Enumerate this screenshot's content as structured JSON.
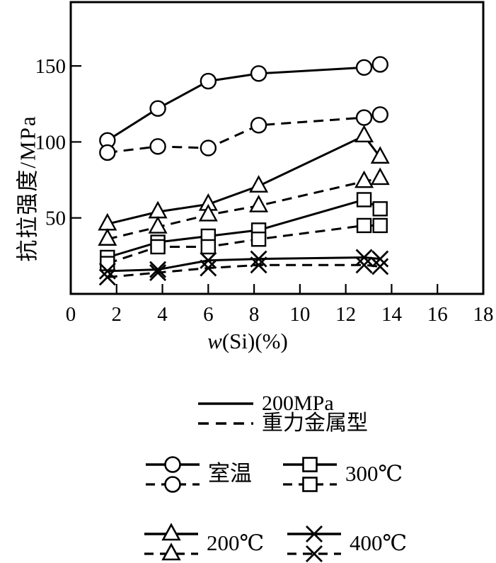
{
  "figure": {
    "background": "#ffffff",
    "ink": "#000000"
  },
  "chart_data": {
    "type": "line",
    "title": "",
    "xlabel": "w(Si)(%)",
    "xlabel_var": "w",
    "xlabel_rest": "(Si)(%)",
    "ylabel": "抗拉强度/MPa",
    "xlim": [
      0,
      18
    ],
    "ylim": [
      0,
      192
    ],
    "x_ticks": [
      0,
      2,
      4,
      6,
      8,
      10,
      12,
      14,
      16,
      18
    ],
    "y_ticks": [
      50,
      100,
      150
    ],
    "grid": false,
    "x": [
      1.6,
      3.8,
      6.0,
      8.2,
      12.8,
      13.5
    ],
    "series": [
      {
        "name": "室温 200MPa",
        "marker": "circle",
        "line": "solid",
        "values": [
          101,
          122,
          140,
          145,
          149,
          151
        ]
      },
      {
        "name": "室温 重力金属型",
        "marker": "circle",
        "line": "dashed",
        "values": [
          93,
          97,
          96,
          111,
          116,
          118
        ]
      },
      {
        "name": "200℃ 200MPa",
        "marker": "triangle",
        "line": "solid",
        "values": [
          46,
          54,
          59,
          71,
          104,
          90
        ]
      },
      {
        "name": "200℃ 重力金属型",
        "marker": "triangle",
        "line": "dashed",
        "values": [
          36,
          44,
          52,
          58,
          74,
          76
        ]
      },
      {
        "name": "300℃ 200MPa",
        "marker": "square",
        "line": "solid",
        "values": [
          24,
          34,
          38,
          42,
          62,
          56
        ]
      },
      {
        "name": "300℃ 重力金属型",
        "marker": "square",
        "line": "dashed",
        "values": [
          20,
          31,
          31,
          36,
          45,
          45
        ]
      },
      {
        "name": "400℃ 200MPa",
        "marker": "x",
        "line": "solid",
        "values": [
          15,
          16,
          22,
          23,
          24,
          23
        ]
      },
      {
        "name": "400℃ 重力金属型",
        "marker": "x",
        "line": "dashed",
        "values": [
          11,
          14,
          17,
          19,
          19,
          18
        ]
      }
    ],
    "legend_linestyles": [
      {
        "style": "solid",
        "label": "200MPa"
      },
      {
        "style": "dashed",
        "label": "重力金属型"
      }
    ],
    "legend_markers": [
      {
        "marker": "circle",
        "label": "室温"
      },
      {
        "marker": "square",
        "label": "300℃"
      },
      {
        "marker": "triangle",
        "label": "200℃"
      },
      {
        "marker": "x",
        "label": "400℃"
      }
    ],
    "legend_position": "below"
  }
}
